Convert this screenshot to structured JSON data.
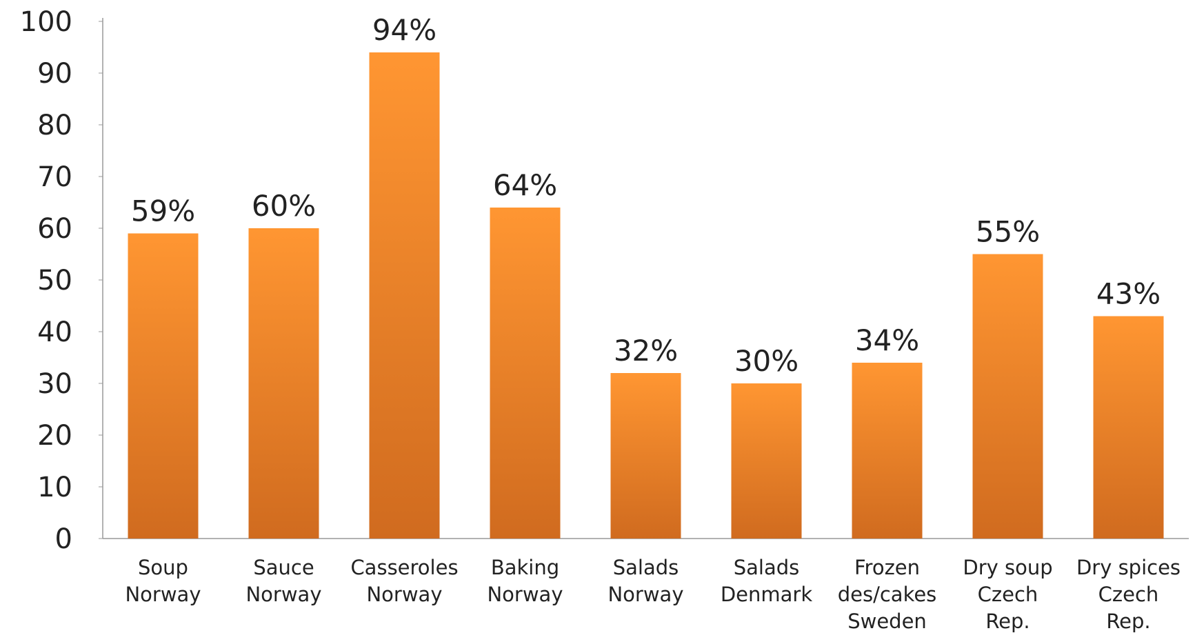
{
  "chart_data": {
    "type": "bar",
    "categories": [
      [
        "Soup",
        "Norway"
      ],
      [
        "Sauce",
        "Norway"
      ],
      [
        "Casseroles",
        "Norway"
      ],
      [
        "Baking",
        "Norway"
      ],
      [
        "Salads",
        "Norway"
      ],
      [
        "Salads",
        "Denmark"
      ],
      [
        "Frozen",
        "des/cakes",
        "Sweden"
      ],
      [
        "Dry soup",
        "Czech",
        "Rep."
      ],
      [
        "Dry spices",
        "Czech",
        "Rep."
      ]
    ],
    "values": [
      59,
      60,
      94,
      64,
      32,
      30,
      34,
      55,
      43
    ],
    "value_labels": [
      "59%",
      "60%",
      "94%",
      "64%",
      "32%",
      "30%",
      "34%",
      "55%",
      "43%"
    ],
    "color": "#f58a2a",
    "ylim": [
      0,
      100
    ],
    "yticks": [
      0,
      10,
      20,
      30,
      40,
      50,
      60,
      70,
      80,
      90,
      100
    ],
    "grid": false
  }
}
